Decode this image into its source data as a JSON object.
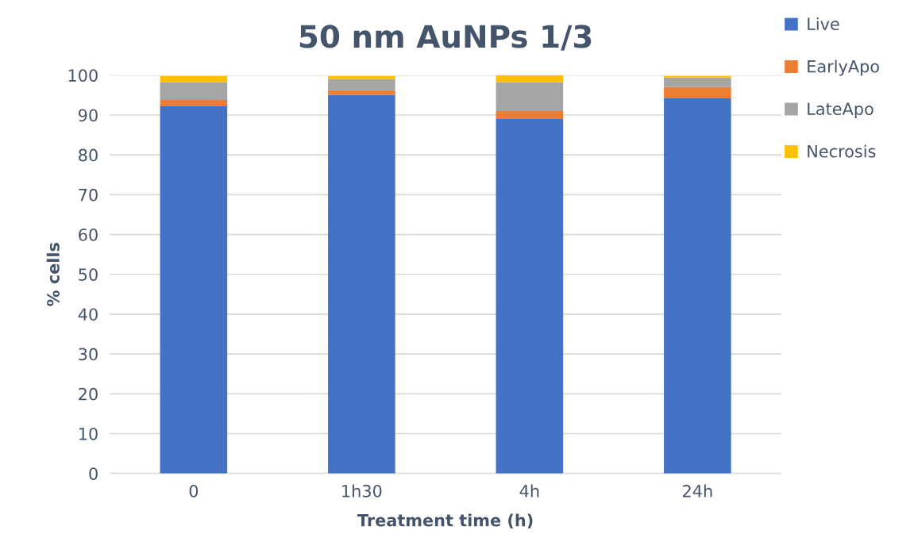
{
  "chart_data": {
    "type": "bar",
    "title": "50 nm AuNPs 1/3",
    "xlabel": "Treatment time (h)",
    "ylabel": "% cells",
    "categories": [
      "0",
      "1h30",
      "4h",
      "24h"
    ],
    "stacked": true,
    "series": [
      {
        "name": "Live",
        "color": "#4472c4",
        "values": [
          92.2,
          95.0,
          89.0,
          94.2
        ]
      },
      {
        "name": "EarlyApo",
        "color": "#ed7d31",
        "values": [
          1.6,
          1.2,
          2.0,
          2.8
        ]
      },
      {
        "name": "LateApo",
        "color": "#a5a5a5",
        "values": [
          4.4,
          2.8,
          7.2,
          2.4
        ]
      },
      {
        "name": "Necrosis",
        "color": "#ffc000",
        "values": [
          1.6,
          0.8,
          1.8,
          0.4
        ]
      }
    ],
    "ylim": [
      0,
      100
    ],
    "yticks": [
      0,
      10,
      20,
      30,
      40,
      50,
      60,
      70,
      80,
      90,
      100
    ],
    "grid": "y",
    "legend": "top right"
  }
}
